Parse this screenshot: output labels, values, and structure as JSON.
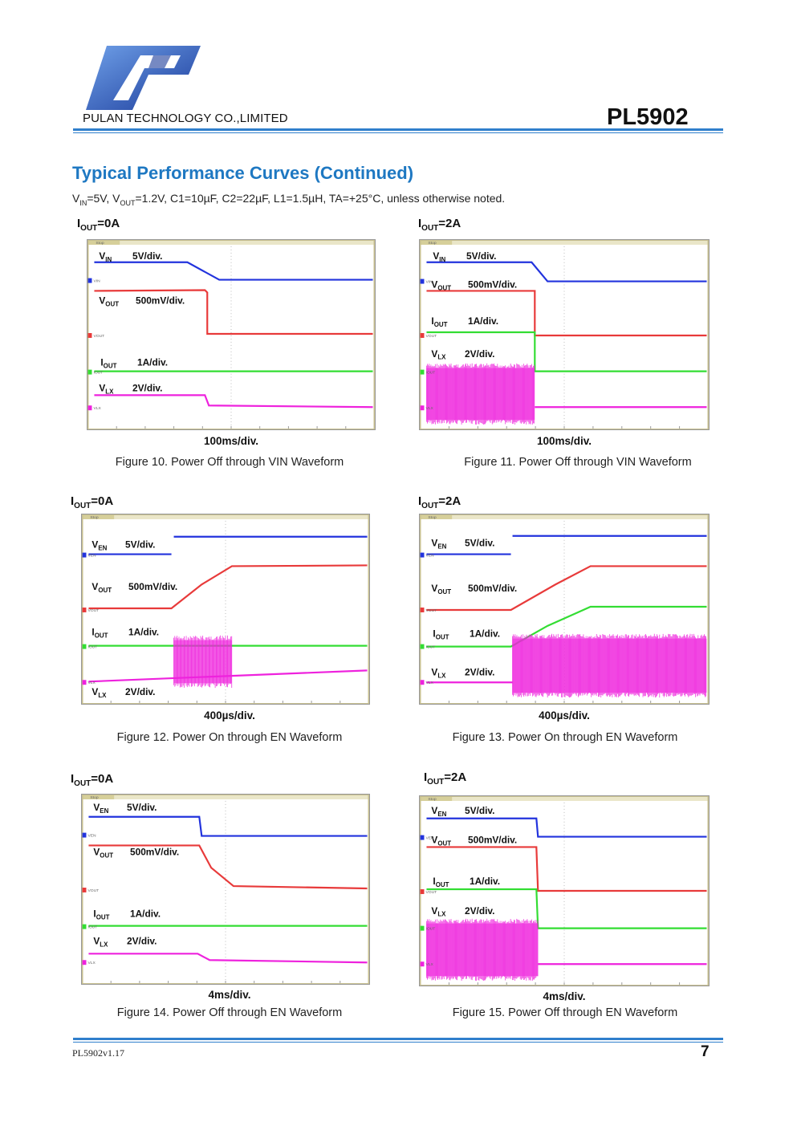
{
  "header": {
    "company": "PULAN TECHNOLOGY CO.,LIMITED",
    "part_number": "PL5902",
    "logo_text": "PL"
  },
  "section": {
    "title": "Typical Performance Curves (Continued)",
    "conditions_parts": [
      "V",
      "IN",
      "=5V, V",
      "OUT",
      "=1.2V, C1=10µF, C2=22µF, L1=1.5µH, TA=+25°C, unless otherwise noted."
    ]
  },
  "figures": [
    {
      "iout_main": "I",
      "iout_sub": "OUT",
      "iout_val": "=0A",
      "timediv": "100ms/div.",
      "caption": "Figure 10. Power Off through VIN Waveform",
      "stop_label": "Stop",
      "channels": [
        {
          "name": "V",
          "sub": "IN",
          "scale": "5V/div.",
          "marker": "VIN"
        },
        {
          "name": "V",
          "sub": "OUT",
          "scale": "500mV/div.",
          "marker": "VOUT"
        },
        {
          "name": "I",
          "sub": "OUT",
          "scale": "1A/div.",
          "marker": "IOUT"
        },
        {
          "name": "V",
          "sub": "LX",
          "scale": "2V/div.",
          "marker": "VLX"
        }
      ]
    },
    {
      "iout_main": "I",
      "iout_sub": "OUT",
      "iout_val": "=2A",
      "timediv": "100ms/div.",
      "caption": "Figure 11. Power Off through VIN Waveform",
      "stop_label": "Stop",
      "channels": [
        {
          "name": "V",
          "sub": "IN",
          "scale": "5V/div.",
          "marker": "VIN"
        },
        {
          "name": "V",
          "sub": "OUT",
          "scale": "500mV/div.",
          "marker": "VOUT"
        },
        {
          "name": "I",
          "sub": "OUT",
          "scale": "1A/div.",
          "marker": "IOUT"
        },
        {
          "name": "V",
          "sub": "LX",
          "scale": "2V/div.",
          "marker": "VLX"
        }
      ]
    },
    {
      "iout_main": "I",
      "iout_sub": "OUT",
      "iout_val": "=0A",
      "timediv": "400µs/div.",
      "caption": "Figure 12. Power On through EN Waveform",
      "stop_label": "Stop",
      "channels": [
        {
          "name": "V",
          "sub": "EN",
          "scale": "5V/div.",
          "marker": "VEN"
        },
        {
          "name": "V",
          "sub": "OUT",
          "scale": "500mV/div.",
          "marker": "VOUT"
        },
        {
          "name": "I",
          "sub": "OUT",
          "scale": "1A/div.",
          "marker": "IOUT"
        },
        {
          "name": "V",
          "sub": "LX",
          "scale": "2V/div.",
          "marker": "VLX"
        }
      ]
    },
    {
      "iout_main": "I",
      "iout_sub": "OUT",
      "iout_val": "=2A",
      "timediv": "400µs/div.",
      "caption": "Figure 13. Power On through EN Waveform",
      "stop_label": "Stop",
      "channels": [
        {
          "name": "V",
          "sub": "EN",
          "scale": "5V/div.",
          "marker": "VEN"
        },
        {
          "name": "V",
          "sub": "OUT",
          "scale": "500mV/div.",
          "marker": "VOUT"
        },
        {
          "name": "I",
          "sub": "OUT",
          "scale": "1A/div.",
          "marker": "IOUT"
        },
        {
          "name": "V",
          "sub": "LX",
          "scale": "2V/div.",
          "marker": "VLX"
        }
      ]
    },
    {
      "iout_main": "I",
      "iout_sub": "OUT",
      "iout_val": "=0A",
      "timediv": "4ms/div.",
      "caption": "Figure 14. Power Off through EN Waveform",
      "stop_label": "Stop",
      "channels": [
        {
          "name": "V",
          "sub": "EN",
          "scale": "5V/div.",
          "marker": "VEN"
        },
        {
          "name": "V",
          "sub": "OUT",
          "scale": "500mV/div.",
          "marker": "VOUT"
        },
        {
          "name": "I",
          "sub": "OUT",
          "scale": "1A/div.",
          "marker": "IOUT"
        },
        {
          "name": "V",
          "sub": "LX",
          "scale": "2V/div.",
          "marker": "VLX"
        }
      ]
    },
    {
      "iout_main": "I",
      "iout_sub": "OUT",
      "iout_val": "=2A",
      "timediv": "4ms/div.",
      "caption": "Figure 15. Power Off through EN Waveform",
      "stop_label": "Stop",
      "channels": [
        {
          "name": "V",
          "sub": "EN",
          "scale": "5V/div.",
          "marker": "VEN"
        },
        {
          "name": "V",
          "sub": "OUT",
          "scale": "500mV/div.",
          "marker": "VOUT"
        },
        {
          "name": "I",
          "sub": "OUT",
          "scale": "1A/div.",
          "marker": "IOUT"
        },
        {
          "name": "V",
          "sub": "LX",
          "scale": "2V/div.",
          "marker": "VLX"
        }
      ]
    }
  ],
  "colors": {
    "accent_blue": "#1e78c2",
    "rule_blue": "#2f7fcc",
    "trace_blue": "#2233dd",
    "trace_red": "#e83a3a",
    "trace_green": "#33dd33",
    "trace_magenta": "#ee22dd",
    "logo_blue": "#2a4fb5"
  },
  "footer": {
    "version": "PL5902v1.17",
    "page": "7"
  }
}
